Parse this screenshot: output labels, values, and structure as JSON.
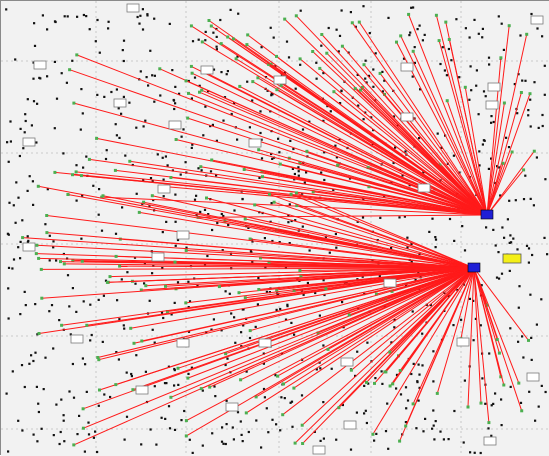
{
  "view": {
    "colors": {
      "canvas_background": "#f2f2f2",
      "grid_line": "#bdbdbd",
      "node_dot": "#111111",
      "link_line": "#ff1a1a",
      "link_endpoint": "#4caf50",
      "hub": "#1f1fd6",
      "target_marker": "#f4ef17",
      "rect_fill": "#ffffff",
      "rect_stroke": "#7a7a7a"
    }
  }
}
